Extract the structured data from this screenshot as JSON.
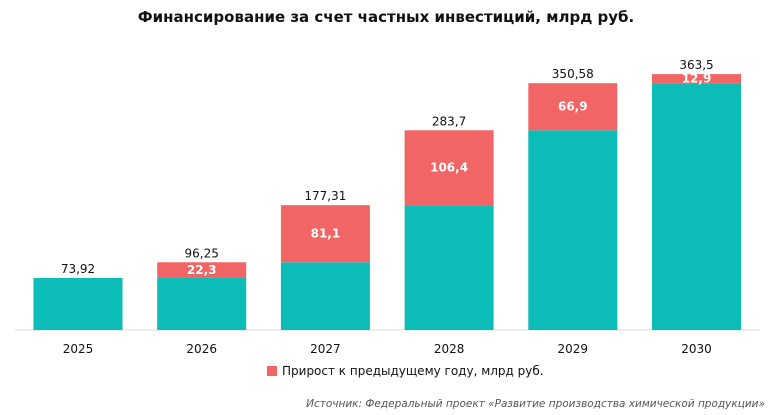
{
  "chart_data": {
    "type": "bar",
    "stacked": true,
    "title": "Финансирование  за счет частных инвестиций,  млрд руб.",
    "categories": [
      "2025",
      "2026",
      "2027",
      "2028",
      "2029",
      "2030"
    ],
    "series": [
      {
        "values": [
          73.92,
          73.92,
          96.21,
          177.3,
          283.68,
          350.6
        ],
        "color": "#0cbcb6"
      },
      {
        "name": "Прирост к предыдущему  году, млрд руб.",
        "values": [
          0,
          22.3,
          81.1,
          106.4,
          66.9,
          12.9
        ],
        "labels": [
          "",
          "22,3",
          "81,1",
          "106,4",
          "66,9",
          "12,9"
        ],
        "color": "#f26565"
      }
    ],
    "total_labels": [
      "73,92",
      "96,25",
      "177,31",
      "283,7",
      "350,58",
      "363,5"
    ],
    "ylim": [
      0,
      400
    ],
    "grid": false,
    "legend": "bottom"
  },
  "source": "Источник: Федеральный проект «Развитие производства химической продукции»"
}
